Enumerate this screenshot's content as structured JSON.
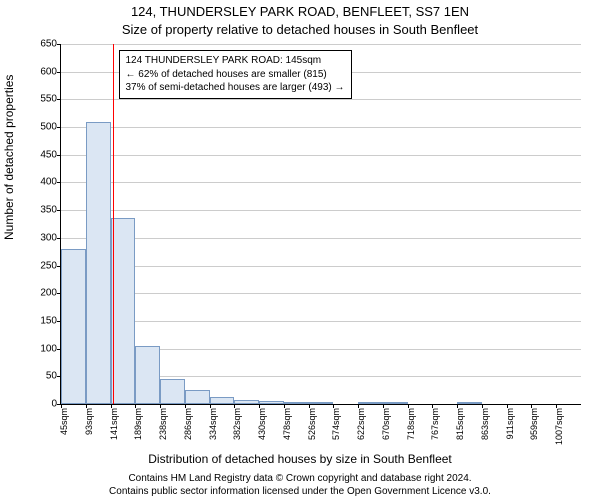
{
  "title": "124, THUNDERSLEY PARK ROAD, BENFLEET, SS7 1EN",
  "subtitle": "Size of property relative to detached houses in South Benfleet",
  "ylabel": "Number of detached properties",
  "xlabel": "Distribution of detached houses by size in South Benfleet",
  "footer_line1": "Contains HM Land Registry data © Crown copyright and database right 2024.",
  "footer_line2": "Contains public sector information licensed under the Open Government Licence v3.0.",
  "chart": {
    "type": "histogram",
    "ylim": [
      0,
      650
    ],
    "ytick_step": 50,
    "background_color": "#ffffff",
    "grid_color": "#cccccc",
    "bar_fill": "#dbe6f3",
    "bar_stroke": "#7a9bc4",
    "marker_color": "#ff0000",
    "axis_color": "#000000",
    "title_fontsize": 13,
    "label_fontsize": 12,
    "tick_fontsize": 10,
    "xtick_fontsize": 9,
    "bar_width_ratio": 1.0,
    "categories": [
      "45sqm",
      "93sqm",
      "141sqm",
      "189sqm",
      "238sqm",
      "286sqm",
      "334sqm",
      "382sqm",
      "430sqm",
      "478sqm",
      "526sqm",
      "574sqm",
      "622sqm",
      "670sqm",
      "718sqm",
      "767sqm",
      "815sqm",
      "863sqm",
      "911sqm",
      "959sqm",
      "1007sqm"
    ],
    "values": [
      280,
      510,
      335,
      105,
      45,
      25,
      12,
      8,
      6,
      4,
      4,
      0,
      2,
      2,
      0,
      0,
      2,
      0,
      0,
      0,
      0
    ],
    "marker_index": 2,
    "marker_fraction_into_bin": 0.08
  },
  "callout": {
    "line1": "124 THUNDERSLEY PARK ROAD: 145sqm",
    "line2": "← 62% of detached houses are smaller (815)",
    "line3": "37% of semi-detached houses are larger (493) →"
  }
}
